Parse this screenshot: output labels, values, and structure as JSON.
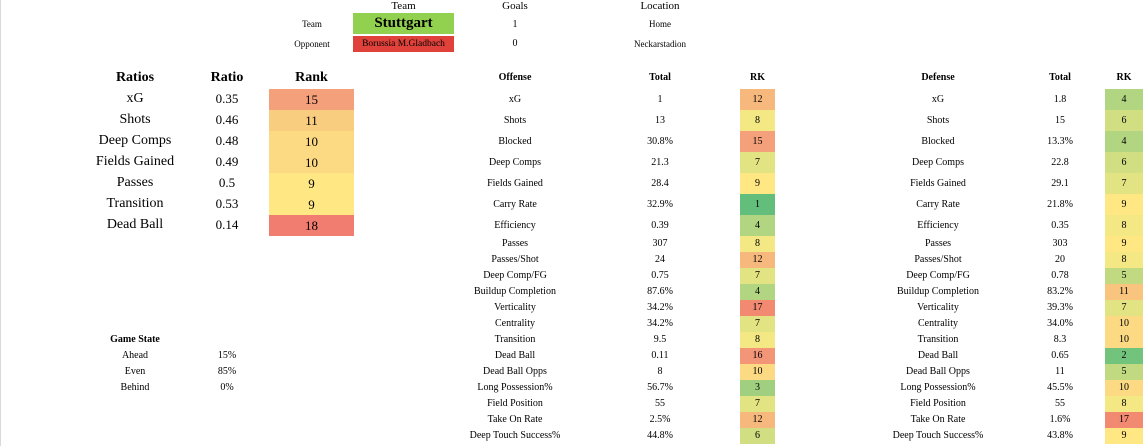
{
  "header": {
    "col_team": "Team",
    "col_goals": "Goals",
    "col_location": "Location",
    "team_label": "Team",
    "opponent_label": "Opponent",
    "team_name": "Stuttgart",
    "opponent_name": "Borussia M.Gladbach",
    "team_goals": "1",
    "opponent_goals": "0",
    "location_type": "Home",
    "venue": "Neckarstadion",
    "colors": {
      "team": "#92d050",
      "opponent": "#e0413a"
    }
  },
  "ratios": {
    "headers": [
      "Ratios",
      "Ratio",
      "Rank"
    ],
    "rows": [
      {
        "name": "xG",
        "ratio": "0.35",
        "rank": "15",
        "color": "#f4a07a"
      },
      {
        "name": "Shots",
        "ratio": "0.46",
        "rank": "11",
        "color": "#f8cd7f"
      },
      {
        "name": "Deep Comps",
        "ratio": "0.48",
        "rank": "10",
        "color": "#fbda83"
      },
      {
        "name": "Fields Gained",
        "ratio": "0.49",
        "rank": "10",
        "color": "#fbda83"
      },
      {
        "name": "Passes",
        "ratio": "0.5",
        "rank": "9",
        "color": "#ffe884"
      },
      {
        "name": "Transition",
        "ratio": "0.53",
        "rank": "9",
        "color": "#ffe884"
      },
      {
        "name": "Dead Ball",
        "ratio": "0.14",
        "rank": "18",
        "color": "#f07d6f"
      }
    ]
  },
  "game_state": {
    "title": "Game State",
    "rows": [
      {
        "label": "Ahead",
        "value": "15%"
      },
      {
        "label": "Even",
        "value": "85%"
      },
      {
        "label": "Behind",
        "value": "0%"
      }
    ]
  },
  "offense": {
    "headers": [
      "Offense",
      "Total",
      "RK"
    ],
    "rows": [
      {
        "name": "xG",
        "total": "1",
        "rk": "12",
        "color": "#f6b87c"
      },
      {
        "name": "Shots",
        "total": "13",
        "rk": "8",
        "color": "#f3e884"
      },
      {
        "name": "Blocked",
        "total": "30.8%",
        "rk": "15",
        "color": "#f4a07a"
      },
      {
        "name": "Deep Comps",
        "total": "21.3",
        "rk": "7",
        "color": "#e2e383"
      },
      {
        "name": "Fields Gained",
        "total": "28.4",
        "rk": "9",
        "color": "#ffe884"
      },
      {
        "name": "Carry Rate",
        "total": "32.9%",
        "rk": "1",
        "color": "#63be7b"
      },
      {
        "name": "Efficiency",
        "total": "0.39",
        "rk": "4",
        "color": "#b1d580"
      },
      {
        "name": "Passes",
        "total": "307",
        "rk": "8",
        "color": "#f3e884"
      },
      {
        "name": "Passes/Shot",
        "total": "24",
        "rk": "12",
        "color": "#f6b87c"
      },
      {
        "name": "Deep Comp/FG",
        "total": "0.75",
        "rk": "7",
        "color": "#e2e383"
      },
      {
        "name": "Buildup Completion",
        "total": "87.6%",
        "rk": "4",
        "color": "#b1d580"
      },
      {
        "name": "Verticality",
        "total": "34.2%",
        "rk": "17",
        "color": "#f28a72"
      },
      {
        "name": "Centrality",
        "total": "34.2%",
        "rk": "7",
        "color": "#e2e383"
      },
      {
        "name": "Transition",
        "total": "9.5",
        "rk": "8",
        "color": "#f3e884"
      },
      {
        "name": "Dead Ball",
        "total": "0.11",
        "rk": "16",
        "color": "#f39577"
      },
      {
        "name": "Dead Ball Opps",
        "total": "8",
        "rk": "10",
        "color": "#fbda83"
      },
      {
        "name": "Long Possession%",
        "total": "56.7%",
        "rk": "3",
        "color": "#a0d07f"
      },
      {
        "name": "Field Position",
        "total": "55",
        "rk": "7",
        "color": "#e2e383"
      },
      {
        "name": "Take On Rate",
        "total": "2.5%",
        "rk": "12",
        "color": "#f6b87c"
      },
      {
        "name": "Deep Touch Success%",
        "total": "44.8%",
        "rk": "6",
        "color": "#d2de82"
      }
    ]
  },
  "defense": {
    "headers": [
      "Defense",
      "Total",
      "RK"
    ],
    "rows": [
      {
        "name": "xG",
        "total": "1.8",
        "rk": "4",
        "color": "#b1d580"
      },
      {
        "name": "Shots",
        "total": "15",
        "rk": "6",
        "color": "#d2de82"
      },
      {
        "name": "Blocked",
        "total": "13.3%",
        "rk": "4",
        "color": "#b1d580"
      },
      {
        "name": "Deep Comps",
        "total": "22.8",
        "rk": "6",
        "color": "#d2de82"
      },
      {
        "name": "Fields Gained",
        "total": "29.1",
        "rk": "7",
        "color": "#e2e383"
      },
      {
        "name": "Carry Rate",
        "total": "21.8%",
        "rk": "9",
        "color": "#ffe884"
      },
      {
        "name": "Efficiency",
        "total": "0.35",
        "rk": "8",
        "color": "#f3e884"
      },
      {
        "name": "Passes",
        "total": "303",
        "rk": "9",
        "color": "#ffe884"
      },
      {
        "name": "Passes/Shot",
        "total": "20",
        "rk": "8",
        "color": "#f3e884"
      },
      {
        "name": "Deep Comp/FG",
        "total": "0.78",
        "rk": "5",
        "color": "#c1da81"
      },
      {
        "name": "Buildup Completion",
        "total": "83.2%",
        "rk": "11",
        "color": "#f9c47e"
      },
      {
        "name": "Verticality",
        "total": "39.3%",
        "rk": "7",
        "color": "#e2e383"
      },
      {
        "name": "Centrality",
        "total": "34.0%",
        "rk": "10",
        "color": "#fbda83"
      },
      {
        "name": "Transition",
        "total": "8.3",
        "rk": "10",
        "color": "#fbda83"
      },
      {
        "name": "Dead Ball",
        "total": "0.65",
        "rk": "2",
        "color": "#72c37c"
      },
      {
        "name": "Dead Ball Opps",
        "total": "11",
        "rk": "5",
        "color": "#c1da81"
      },
      {
        "name": "Long Possession%",
        "total": "45.5%",
        "rk": "10",
        "color": "#fbda83"
      },
      {
        "name": "Field Position",
        "total": "55",
        "rk": "8",
        "color": "#f3e884"
      },
      {
        "name": "Take On Rate",
        "total": "1.6%",
        "rk": "17",
        "color": "#f28a72"
      },
      {
        "name": "Deep Touch Success%",
        "total": "43.8%",
        "rk": "9",
        "color": "#ffe884"
      }
    ]
  }
}
